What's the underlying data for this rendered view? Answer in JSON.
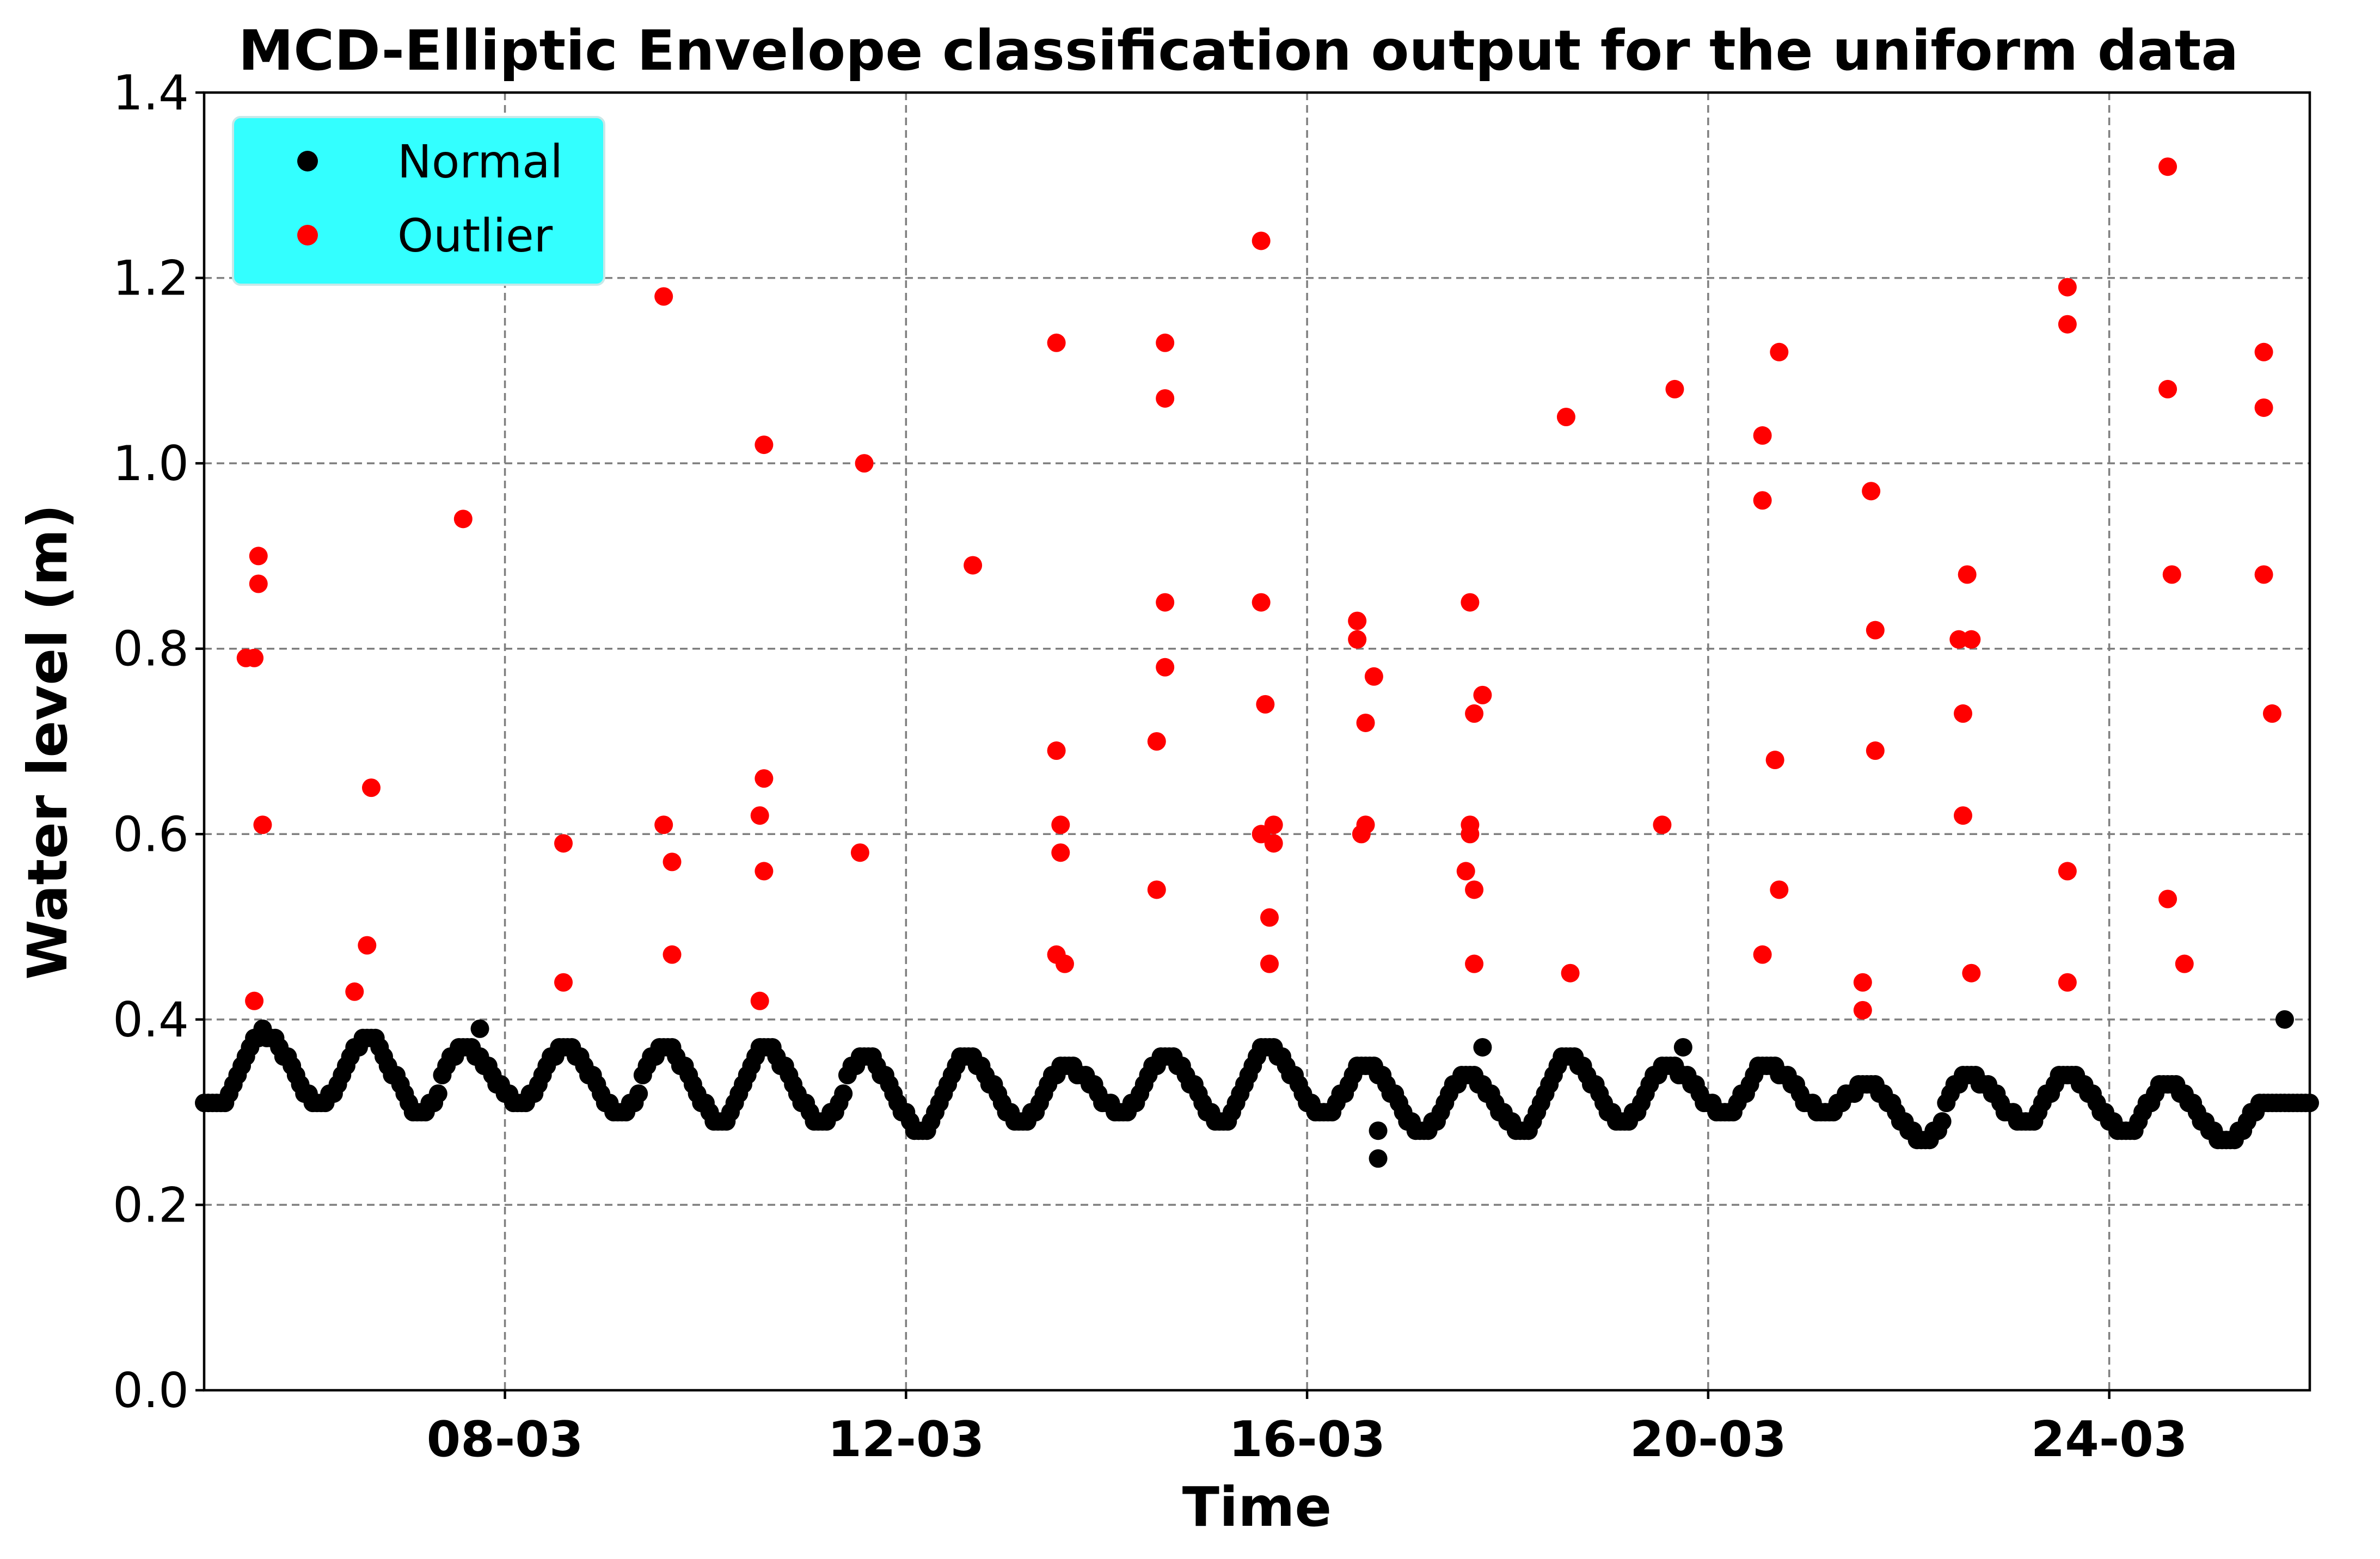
{
  "chart_data": {
    "type": "scatter",
    "title": "MCD-Elliptic Envelope classification output for the uniform data",
    "xlabel": "Time",
    "ylabel": "Water level (m)",
    "xlim": [
      "2017-03-05",
      "2017-03-26"
    ],
    "ylim": [
      0,
      1.4
    ],
    "xticks": [
      {
        "date": "2017-03-08",
        "label": "08-03"
      },
      {
        "date": "2017-03-12",
        "label": "12-03"
      },
      {
        "date": "2017-03-16",
        "label": "16-03"
      },
      {
        "date": "2017-03-20",
        "label": "20-03"
      },
      {
        "date": "2017-03-24",
        "label": "24-03"
      }
    ],
    "yticks": [
      {
        "value": 0.0,
        "label": "0.0"
      },
      {
        "value": 0.2,
        "label": "0.2"
      },
      {
        "value": 0.4,
        "label": "0.4"
      },
      {
        "value": 0.6,
        "label": "0.6"
      },
      {
        "value": 0.8,
        "label": "0.8"
      },
      {
        "value": 1.0,
        "label": "1.0"
      },
      {
        "value": 1.2,
        "label": "1.2"
      },
      {
        "value": 1.4,
        "label": "1.4"
      }
    ],
    "grid": true,
    "legend": {
      "position": "top-left",
      "background": "#33ffff"
    },
    "series": [
      {
        "name": "Normal",
        "color": "#000000",
        "baseline": {
          "start": "2017-03-05 00:00",
          "end": "2017-03-26 00:00",
          "step_hours": 1,
          "daily_peaks": [
            [
              "2017-03-05 14:00",
              0.385
            ],
            [
              "2017-03-06 15:00",
              0.38
            ],
            [
              "2017-03-07 14:00",
              0.37
            ],
            [
              "2017-03-08 14:00",
              0.37
            ],
            [
              "2017-03-09 14:00",
              0.37
            ],
            [
              "2017-03-10 14:00",
              0.37
            ],
            [
              "2017-03-11 14:00",
              0.36
            ],
            [
              "2017-03-12 14:00",
              0.36
            ],
            [
              "2017-03-13 14:00",
              0.35
            ],
            [
              "2017-03-14 14:00",
              0.36
            ],
            [
              "2017-03-15 14:00",
              0.37
            ],
            [
              "2017-03-16 14:00",
              0.35
            ],
            [
              "2017-03-17 14:00",
              0.34
            ],
            [
              "2017-03-18 14:00",
              0.36
            ],
            [
              "2017-03-19 14:00",
              0.35
            ],
            [
              "2017-03-20 14:00",
              0.35
            ],
            [
              "2017-03-21 14:00",
              0.33
            ],
            [
              "2017-03-22 14:00",
              0.34
            ],
            [
              "2017-03-23 14:00",
              0.34
            ],
            [
              "2017-03-24 14:00",
              0.33
            ],
            [
              "2017-03-25 14:00",
              0.31
            ]
          ],
          "daily_troughs": [
            [
              "2017-03-05 04:00",
              0.31
            ],
            [
              "2017-03-06 04:00",
              0.31
            ],
            [
              "2017-03-07 04:00",
              0.3
            ],
            [
              "2017-03-08 04:00",
              0.31
            ],
            [
              "2017-03-09 04:00",
              0.3
            ],
            [
              "2017-03-10 04:00",
              0.29
            ],
            [
              "2017-03-11 04:00",
              0.29
            ],
            [
              "2017-03-12 04:00",
              0.28
            ],
            [
              "2017-03-13 04:00",
              0.29
            ],
            [
              "2017-03-14 04:00",
              0.3
            ],
            [
              "2017-03-15 04:00",
              0.29
            ],
            [
              "2017-03-16 04:00",
              0.3
            ],
            [
              "2017-03-17 04:00",
              0.28
            ],
            [
              "2017-03-18 04:00",
              0.28
            ],
            [
              "2017-03-19 04:00",
              0.29
            ],
            [
              "2017-03-20 04:00",
              0.3
            ],
            [
              "2017-03-21 04:00",
              0.3
            ],
            [
              "2017-03-22 04:00",
              0.27
            ],
            [
              "2017-03-23 04:00",
              0.29
            ],
            [
              "2017-03-24 04:00",
              0.28
            ],
            [
              "2017-03-25 04:00",
              0.27
            ]
          ]
        },
        "points": [
          [
            "2017-03-07 18:00",
            0.39
          ],
          [
            "2017-03-16 17:00",
            0.28
          ],
          [
            "2017-03-16 17:00",
            0.25
          ],
          [
            "2017-03-17 18:00",
            0.37
          ],
          [
            "2017-03-19 18:00",
            0.37
          ],
          [
            "2017-03-25 18:00",
            0.4
          ]
        ]
      },
      {
        "name": "Outlier",
        "color": "#ff0000",
        "points": [
          [
            "2017-03-05 10:00",
            0.79
          ],
          [
            "2017-03-05 12:00",
            0.79
          ],
          [
            "2017-03-05 13:00",
            0.87
          ],
          [
            "2017-03-05 13:00",
            0.9
          ],
          [
            "2017-03-05 14:00",
            0.61
          ],
          [
            "2017-03-05 12:00",
            0.42
          ],
          [
            "2017-03-06 12:00",
            0.43
          ],
          [
            "2017-03-06 15:00",
            0.48
          ],
          [
            "2017-03-06 16:00",
            0.65
          ],
          [
            "2017-03-07 14:00",
            0.94
          ],
          [
            "2017-03-08 14:00",
            0.59
          ],
          [
            "2017-03-08 14:00",
            0.44
          ],
          [
            "2017-03-09 14:00",
            1.18
          ],
          [
            "2017-03-09 14:00",
            0.61
          ],
          [
            "2017-03-09 16:00",
            0.57
          ],
          [
            "2017-03-09 16:00",
            0.47
          ],
          [
            "2017-03-10 14:00",
            1.02
          ],
          [
            "2017-03-10 14:00",
            0.66
          ],
          [
            "2017-03-10 13:00",
            0.62
          ],
          [
            "2017-03-10 14:00",
            0.56
          ],
          [
            "2017-03-10 13:00",
            0.42
          ],
          [
            "2017-03-11 14:00",
            1.0
          ],
          [
            "2017-03-11 13:00",
            0.58
          ],
          [
            "2017-03-12 16:00",
            0.89
          ],
          [
            "2017-03-13 12:00",
            1.13
          ],
          [
            "2017-03-13 12:00",
            0.69
          ],
          [
            "2017-03-13 13:00",
            0.61
          ],
          [
            "2017-03-13 13:00",
            0.58
          ],
          [
            "2017-03-13 12:00",
            0.47
          ],
          [
            "2017-03-13 14:00",
            0.46
          ],
          [
            "2017-03-14 14:00",
            1.13
          ],
          [
            "2017-03-14 14:00",
            1.07
          ],
          [
            "2017-03-14 14:00",
            0.85
          ],
          [
            "2017-03-14 14:00",
            0.78
          ],
          [
            "2017-03-14 12:00",
            0.7
          ],
          [
            "2017-03-14 12:00",
            0.54
          ],
          [
            "2017-03-15 13:00",
            1.24
          ],
          [
            "2017-03-15 13:00",
            0.85
          ],
          [
            "2017-03-15 14:00",
            0.74
          ],
          [
            "2017-03-15 16:00",
            0.61
          ],
          [
            "2017-03-15 13:00",
            0.6
          ],
          [
            "2017-03-15 16:00",
            0.59
          ],
          [
            "2017-03-15 15:00",
            0.51
          ],
          [
            "2017-03-15 15:00",
            0.46
          ],
          [
            "2017-03-16 12:00",
            0.83
          ],
          [
            "2017-03-16 12:00",
            0.81
          ],
          [
            "2017-03-16 16:00",
            0.77
          ],
          [
            "2017-03-16 14:00",
            0.72
          ],
          [
            "2017-03-16 14:00",
            0.61
          ],
          [
            "2017-03-16 13:00",
            0.6
          ],
          [
            "2017-03-17 15:00",
            0.85
          ],
          [
            "2017-03-17 18:00",
            0.75
          ],
          [
            "2017-03-17 16:00",
            0.73
          ],
          [
            "2017-03-17 15:00",
            0.61
          ],
          [
            "2017-03-17 15:00",
            0.6
          ],
          [
            "2017-03-17 14:00",
            0.56
          ],
          [
            "2017-03-17 16:00",
            0.54
          ],
          [
            "2017-03-17 16:00",
            0.46
          ],
          [
            "2017-03-18 14:00",
            1.05
          ],
          [
            "2017-03-18 15:00",
            0.45
          ],
          [
            "2017-03-19 16:00",
            1.08
          ],
          [
            "2017-03-19 13:00",
            0.61
          ],
          [
            "2017-03-20 13:00",
            1.03
          ],
          [
            "2017-03-20 13:00",
            0.96
          ],
          [
            "2017-03-20 17:00",
            1.12
          ],
          [
            "2017-03-20 16:00",
            0.68
          ],
          [
            "2017-03-20 17:00",
            0.54
          ],
          [
            "2017-03-20 13:00",
            0.47
          ],
          [
            "2017-03-21 15:00",
            0.97
          ],
          [
            "2017-03-21 16:00",
            0.82
          ],
          [
            "2017-03-21 16:00",
            0.69
          ],
          [
            "2017-03-21 13:00",
            0.44
          ],
          [
            "2017-03-21 13:00",
            0.41
          ],
          [
            "2017-03-22 12:00",
            0.81
          ],
          [
            "2017-03-22 15:00",
            0.81
          ],
          [
            "2017-03-22 14:00",
            0.88
          ],
          [
            "2017-03-22 13:00",
            0.73
          ],
          [
            "2017-03-22 13:00",
            0.62
          ],
          [
            "2017-03-22 15:00",
            0.45
          ],
          [
            "2017-03-23 14:00",
            1.19
          ],
          [
            "2017-03-23 14:00",
            1.15
          ],
          [
            "2017-03-23 14:00",
            0.56
          ],
          [
            "2017-03-23 14:00",
            0.44
          ],
          [
            "2017-03-24 14:00",
            1.32
          ],
          [
            "2017-03-24 14:00",
            1.08
          ],
          [
            "2017-03-24 15:00",
            0.88
          ],
          [
            "2017-03-24 14:00",
            0.53
          ],
          [
            "2017-03-24 18:00",
            0.46
          ],
          [
            "2017-03-25 13:00",
            1.12
          ],
          [
            "2017-03-25 13:00",
            1.06
          ],
          [
            "2017-03-25 13:00",
            0.88
          ],
          [
            "2017-03-25 15:00",
            0.73
          ]
        ]
      }
    ]
  }
}
